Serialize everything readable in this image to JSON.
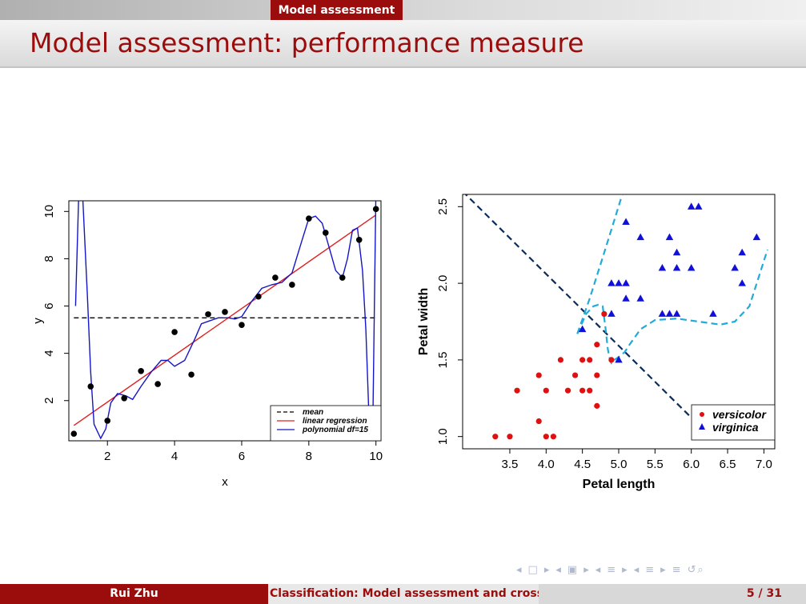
{
  "header": {
    "section": "Model assessment",
    "title": "Model assessment: performance measure"
  },
  "footer": {
    "author": "Rui Zhu",
    "title": "Classification: Model assessment and cross- ",
    "page": "5 / 31"
  },
  "nav_icons": [
    "◂",
    "□",
    "▸",
    "◂",
    "▣",
    "▸",
    "◂",
    "≡",
    "▸",
    "◂",
    "≡",
    "▸",
    "≡",
    "↺⌕"
  ],
  "chart_data": [
    {
      "type": "scatter",
      "xlabel": "x",
      "ylabel": "y",
      "xlim": [
        0.85,
        10.15
      ],
      "ylim": [
        0.3,
        10.45
      ],
      "xticks": [
        2,
        4,
        6,
        8,
        10
      ],
      "yticks": [
        2,
        4,
        6,
        8,
        10
      ],
      "points": [
        [
          1,
          0.6
        ],
        [
          1.5,
          2.6
        ],
        [
          2,
          1.15
        ],
        [
          2.5,
          2.1
        ],
        [
          3,
          3.25
        ],
        [
          3.5,
          2.7
        ],
        [
          4,
          4.9
        ],
        [
          4.5,
          3.1
        ],
        [
          5,
          5.65
        ],
        [
          5.5,
          5.75
        ],
        [
          6,
          5.2
        ],
        [
          6.5,
          6.4
        ],
        [
          7,
          7.2
        ],
        [
          7.5,
          6.9
        ],
        [
          8,
          9.7
        ],
        [
          8.5,
          9.1
        ],
        [
          9,
          7.2
        ],
        [
          9.5,
          8.8
        ],
        [
          10,
          10.1
        ]
      ],
      "lines": [
        {
          "name": "mean",
          "color": "#000000",
          "style": "dashed",
          "x": [
            1,
            10
          ],
          "y": [
            5.5,
            5.5
          ]
        },
        {
          "name": "linear regression",
          "color": "#e02020",
          "style": "solid",
          "x": [
            1,
            10
          ],
          "y": [
            0.95,
            9.85
          ]
        },
        {
          "name": "polynomial df=15",
          "color": "#1515c8",
          "style": "solid",
          "x": [
            1.05,
            1.15,
            1.25,
            1.4,
            1.5,
            1.6,
            1.8,
            1.95,
            2.1,
            2.3,
            2.55,
            2.75,
            3.0,
            3.3,
            3.6,
            3.8,
            4.0,
            4.3,
            4.6,
            4.8,
            5.0,
            5.3,
            5.6,
            5.8,
            6.0,
            6.3,
            6.6,
            6.9,
            7.2,
            7.5,
            7.8,
            8.0,
            8.2,
            8.4,
            8.6,
            8.8,
            9.0,
            9.15,
            9.3,
            9.45,
            9.6,
            9.7,
            9.8,
            9.9,
            10.0
          ],
          "y": [
            6.0,
            11.0,
            11.0,
            6.5,
            3.2,
            1.0,
            0.4,
            0.8,
            1.9,
            2.3,
            2.2,
            2.05,
            2.6,
            3.2,
            3.7,
            3.7,
            3.45,
            3.7,
            4.6,
            5.25,
            5.35,
            5.5,
            5.5,
            5.45,
            5.55,
            6.2,
            6.75,
            6.9,
            7.0,
            7.4,
            8.8,
            9.7,
            9.8,
            9.5,
            8.5,
            7.5,
            7.2,
            8.0,
            9.2,
            9.3,
            7.5,
            5.0,
            1.0,
            0.2,
            11.0
          ]
        }
      ],
      "legend": {
        "position": "bottom-right",
        "entries": [
          "mean",
          "linear regression",
          "polynomial df=15"
        ]
      }
    },
    {
      "type": "scatter",
      "xlabel": "Petal length",
      "ylabel": "Petal width",
      "xlim": [
        2.85,
        7.15
      ],
      "ylim": [
        0.92,
        2.58
      ],
      "xticks": [
        3.5,
        4.0,
        4.5,
        5.0,
        5.5,
        6.0,
        6.5,
        7.0
      ],
      "yticks": [
        1.0,
        1.5,
        2.0,
        2.5
      ],
      "xtick_labels": [
        "3.5",
        "4.0",
        "4.5",
        "5.0",
        "5.5",
        "6.0",
        "6.5",
        "7.0"
      ],
      "ytick_labels": [
        "1.0",
        "1.5",
        "2.0",
        "2.5"
      ],
      "series": [
        {
          "name": "versicolor",
          "color": "#e01010",
          "marker": "circle",
          "points": [
            [
              3.3,
              1.0
            ],
            [
              3.5,
              1.0
            ],
            [
              4.0,
              1.0
            ],
            [
              4.1,
              1.0
            ],
            [
              3.6,
              1.3
            ],
            [
              3.9,
              1.1
            ],
            [
              3.9,
              1.4
            ],
            [
              4.0,
              1.3
            ],
            [
              4.2,
              1.5
            ],
            [
              4.3,
              1.3
            ],
            [
              4.4,
              1.4
            ],
            [
              4.5,
              1.5
            ],
            [
              4.6,
              1.5
            ],
            [
              4.5,
              1.3
            ],
            [
              4.6,
              1.3
            ],
            [
              4.7,
              1.4
            ],
            [
              4.7,
              1.2
            ],
            [
              4.7,
              1.6
            ],
            [
              4.8,
              1.8
            ],
            [
              4.9,
              1.5
            ]
          ]
        },
        {
          "name": "virginica",
          "color": "#1010d8",
          "marker": "triangle",
          "points": [
            [
              4.5,
              1.7
            ],
            [
              4.9,
              1.8
            ],
            [
              5.0,
              1.5
            ],
            [
              4.9,
              2.0
            ],
            [
              5.0,
              2.0
            ],
            [
              5.1,
              2.0
            ],
            [
              5.1,
              1.9
            ],
            [
              5.3,
              1.9
            ],
            [
              5.3,
              2.3
            ],
            [
              5.1,
              2.4
            ],
            [
              5.6,
              1.8
            ],
            [
              5.7,
              1.8
            ],
            [
              5.6,
              2.1
            ],
            [
              5.7,
              2.3
            ],
            [
              5.8,
              2.2
            ],
            [
              5.8,
              2.1
            ],
            [
              6.0,
              2.1
            ],
            [
              5.8,
              1.8
            ],
            [
              6.3,
              1.8
            ],
            [
              6.6,
              2.1
            ],
            [
              6.7,
              2.2
            ],
            [
              6.7,
              2.0
            ],
            [
              6.9,
              2.3
            ],
            [
              6.0,
              2.5
            ],
            [
              6.1,
              2.5
            ]
          ]
        }
      ],
      "lines": [
        {
          "color": "#0b2c5a",
          "style": "dashed",
          "x": [
            2.85,
            6.05
          ],
          "y": [
            2.6,
            1.1
          ]
        },
        {
          "color": "#22aad8",
          "style": "dashed",
          "x": [
            4.43,
            4.55,
            4.65,
            4.72,
            4.78,
            4.82,
            4.85,
            4.88,
            4.9,
            4.94,
            5.0,
            5.08,
            5.15,
            5.3,
            5.5,
            5.8,
            6.1,
            6.4,
            6.6,
            6.8,
            7.05
          ],
          "y": [
            1.67,
            1.8,
            1.85,
            1.86,
            1.85,
            1.7,
            1.57,
            1.5,
            1.48,
            1.5,
            1.52,
            1.55,
            1.6,
            1.7,
            1.76,
            1.77,
            1.75,
            1.73,
            1.75,
            1.85,
            2.22
          ]
        },
        {
          "color": "#22aad8",
          "style": "dashed",
          "x": [
            4.43,
            4.6,
            4.8,
            5.05
          ],
          "y": [
            1.67,
            1.9,
            2.2,
            2.58
          ]
        }
      ],
      "legend": {
        "position": "bottom-right",
        "entries": [
          "versicolor",
          "virginica"
        ]
      }
    }
  ]
}
